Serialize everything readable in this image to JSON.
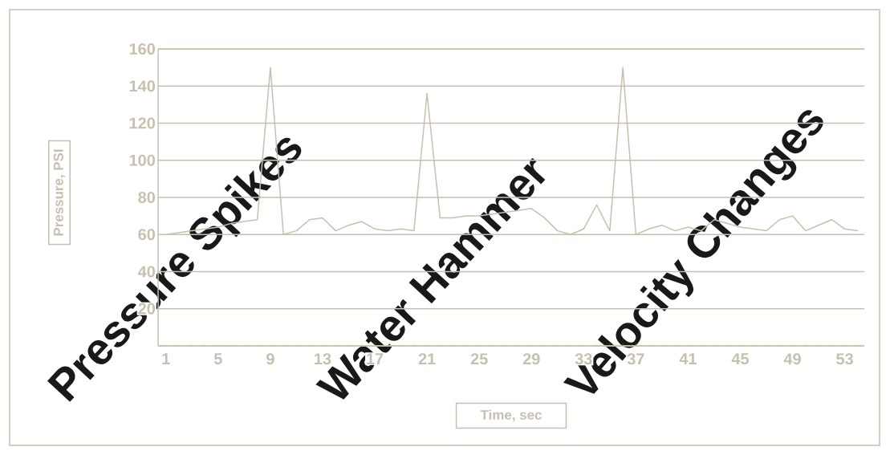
{
  "chart_data": {
    "type": "line",
    "categories": [
      "1",
      null,
      null,
      null,
      "5",
      null,
      null,
      null,
      "9",
      null,
      null,
      null,
      "13",
      null,
      null,
      null,
      "17",
      null,
      null,
      null,
      "21",
      null,
      null,
      null,
      "25",
      null,
      null,
      null,
      "29",
      null,
      null,
      null,
      "33",
      null,
      null,
      null,
      "37",
      null,
      null,
      null,
      "41",
      null,
      null,
      null,
      "45",
      null,
      null,
      null,
      "49",
      null,
      null,
      null,
      "53",
      null
    ],
    "values": [
      60,
      61,
      62,
      63,
      64,
      66,
      67,
      68,
      150,
      60,
      62,
      68,
      69,
      62,
      65,
      67,
      63,
      62,
      63,
      62,
      136,
      69,
      69,
      70,
      70,
      71,
      72,
      73,
      74,
      69,
      62,
      60,
      63,
      76,
      62,
      150,
      60,
      63,
      65,
      62,
      64,
      62,
      68,
      66,
      64,
      63,
      62,
      68,
      70,
      62,
      65,
      68,
      63,
      62
    ],
    "color": "#c8bfae",
    "ylim": [
      0,
      160
    ],
    "yticks": [
      {
        "value": 0,
        "label": null
      },
      20,
      40,
      60,
      80,
      100,
      120,
      140,
      160
    ],
    "grid": "y",
    "xlabel": "Time, sec",
    "ylabel": "Pressure, PSI",
    "annotations": [
      "Pressure Spikes",
      "Water Hammer",
      "Velocity Changes"
    ]
  }
}
